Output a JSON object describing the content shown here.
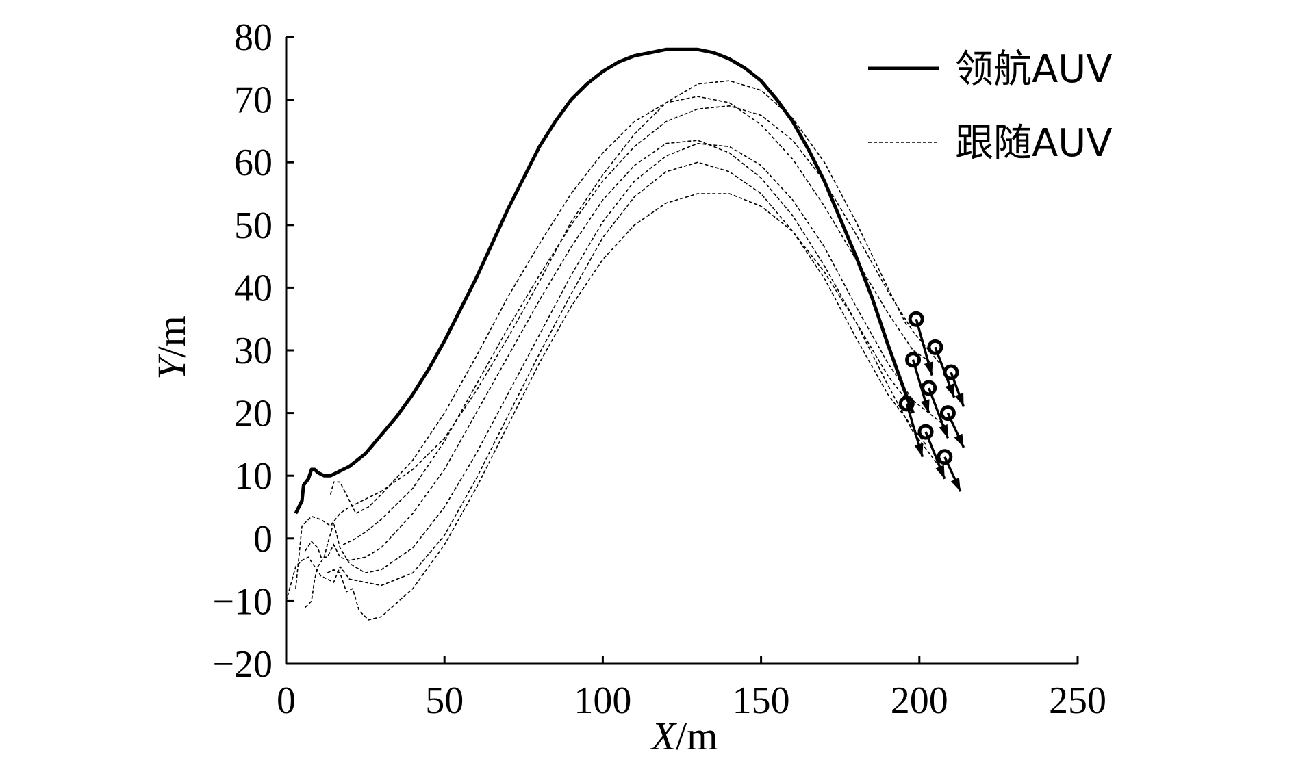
{
  "chart_data": {
    "type": "line",
    "title": "",
    "xlabel_italic": "X",
    "xlabel_unit": "/m",
    "ylabel_italic": "Y",
    "ylabel_unit": "/m",
    "xlim": [
      0,
      250
    ],
    "ylim": [
      -20,
      80
    ],
    "xticks": [
      0,
      50,
      100,
      150,
      200,
      250
    ],
    "yticks": [
      80,
      70,
      60,
      50,
      40,
      30,
      20,
      10,
      0,
      -10,
      -20
    ],
    "xtick_labels": [
      "0",
      "50",
      "100",
      "150",
      "200",
      "250"
    ],
    "ytick_labels": [
      "80",
      "70",
      "60",
      "50",
      "40",
      "30",
      "20",
      "10",
      "0",
      "−10",
      "−20"
    ],
    "grid": false,
    "legend_position": "top-right",
    "legend": [
      {
        "label": "领航AUV",
        "style": "solid"
      },
      {
        "label": "跟随AUV",
        "style": "dashed"
      }
    ],
    "series": [
      {
        "name": "领航AUV",
        "style": "solid",
        "x": [
          3,
          4,
          5,
          5.5,
          7,
          8,
          9,
          10,
          12,
          14,
          16,
          18,
          20,
          25,
          30,
          35,
          40,
          45,
          50,
          55,
          60,
          65,
          70,
          75,
          80,
          85,
          90,
          95,
          100,
          105,
          110,
          115,
          120,
          125,
          130,
          135,
          140,
          145,
          150,
          155,
          160,
          165,
          170,
          175,
          180,
          185,
          190,
          195,
          198
        ],
        "y": [
          4,
          5,
          6,
          8.5,
          9.5,
          11,
          11,
          10.5,
          10,
          10,
          10.5,
          11,
          11.5,
          13.5,
          16.5,
          19.5,
          23,
          27,
          31.5,
          36.5,
          41.5,
          47,
          52.5,
          57.5,
          62.5,
          66.5,
          70,
          72.5,
          74.5,
          76,
          77,
          77.5,
          78,
          78,
          78,
          77.5,
          76.5,
          75,
          73,
          70,
          66.5,
          62,
          57,
          51,
          45,
          38.5,
          31,
          24,
          20
        ]
      },
      {
        "name": "跟随AUV",
        "style": "dashed",
        "x": [
          14,
          15,
          17,
          19,
          22,
          26,
          30,
          40,
          50,
          60,
          70,
          80,
          90,
          100,
          110,
          120,
          130,
          140,
          150,
          160,
          170,
          180,
          190,
          198,
          204
        ],
        "y": [
          7,
          9,
          9,
          7,
          4,
          5,
          7,
          12.5,
          20,
          29,
          38.5,
          47,
          55,
          61.5,
          66.5,
          69.5,
          70.5,
          69.5,
          66,
          60.5,
          53,
          44.5,
          36,
          30,
          28
        ]
      },
      {
        "name": "跟随AUV",
        "style": "dashed",
        "x": [
          3,
          5,
          8,
          11,
          14,
          17,
          20,
          24,
          30,
          40,
          50,
          60,
          70,
          80,
          90,
          100,
          110,
          120,
          130,
          140,
          150,
          160,
          170,
          180,
          190,
          196
        ],
        "y": [
          -8,
          2,
          3.5,
          3,
          2,
          4,
          5,
          6,
          7.5,
          11,
          16,
          23.5,
          32,
          41,
          50.5,
          58,
          64.5,
          69.5,
          72.5,
          73,
          71.5,
          67,
          60,
          50.5,
          40,
          34
        ]
      },
      {
        "name": "跟随AUV",
        "style": "dashed",
        "x": [
          18,
          20,
          22,
          25,
          30,
          40,
          50,
          60,
          70,
          80,
          90,
          100,
          110,
          120,
          130,
          140,
          150,
          160,
          170,
          180,
          190,
          198,
          208
        ],
        "y": [
          -1,
          -0.5,
          0,
          1,
          3,
          8,
          15.5,
          24.5,
          33.5,
          42,
          50,
          57,
          62.5,
          66.5,
          68.5,
          69,
          67.5,
          63.5,
          57,
          48.5,
          39.5,
          33,
          27
        ]
      },
      {
        "name": "跟随AUV",
        "style": "dashed",
        "x": [
          6,
          8,
          10,
          11,
          13,
          15,
          17,
          20,
          25,
          30,
          40,
          50,
          60,
          70,
          80,
          90,
          100,
          110,
          120,
          130,
          140,
          150,
          160,
          170,
          180,
          190,
          196
        ],
        "y": [
          -2,
          -0.5,
          -1.5,
          -3,
          -3,
          -1,
          -3,
          -3.5,
          -3,
          -1.5,
          4,
          11,
          20,
          29,
          38,
          46.5,
          54,
          59.5,
          63,
          63.5,
          61.5,
          57.5,
          51.5,
          43.5,
          34.5,
          26,
          22
        ]
      },
      {
        "name": "跟随AUV",
        "style": "dashed",
        "x": [
          6,
          8,
          9,
          10,
          12,
          13,
          15,
          17,
          20,
          25,
          30,
          40,
          50,
          60,
          70,
          80,
          90,
          100,
          110,
          120,
          130,
          140,
          150,
          160,
          170,
          180,
          190,
          198,
          208
        ],
        "y": [
          -11,
          -10,
          -6.5,
          -4.5,
          -3,
          -1,
          2.5,
          -1.5,
          -4,
          -5.5,
          -5,
          -1.5,
          5,
          13.5,
          23,
          32.5,
          42,
          50.5,
          57,
          61,
          63,
          62.5,
          59.5,
          54,
          46.5,
          37,
          28,
          22,
          18
        ]
      },
      {
        "name": "跟随AUV",
        "style": "dashed",
        "x": [
          0,
          3,
          5,
          7,
          9,
          11,
          13,
          15,
          17,
          20,
          25,
          30,
          40,
          50,
          60,
          70,
          80,
          90,
          100,
          110,
          120,
          130,
          140,
          150,
          160,
          170,
          180,
          190,
          202
        ],
        "y": [
          -10,
          -4.5,
          -3.5,
          -3,
          -4.5,
          -6,
          -6.5,
          -7,
          -4.5,
          -6.5,
          -7,
          -7.5,
          -5.5,
          0.5,
          9.5,
          19.5,
          29.5,
          39,
          48,
          54.5,
          58.5,
          60,
          58.5,
          55,
          49,
          41.5,
          32,
          23,
          15
        ]
      },
      {
        "name": "跟随AUV",
        "style": "dashed",
        "x": [
          13,
          15,
          17,
          19,
          21,
          23,
          26,
          30,
          40,
          50,
          60,
          70,
          80,
          90,
          100,
          110,
          120,
          130,
          140,
          150,
          160,
          170,
          180,
          190,
          198,
          207
        ],
        "y": [
          -5.5,
          -5,
          -5.5,
          -8.5,
          -8,
          -11.5,
          -13,
          -12.5,
          -8,
          -1,
          8,
          18,
          28,
          37,
          44.5,
          50,
          53.5,
          55,
          55,
          53,
          49,
          42.5,
          34.5,
          24.5,
          17,
          11
        ]
      }
    ],
    "formation_markers": [
      {
        "x": 199,
        "y": 35,
        "heading_to": [
          204,
          26
        ]
      },
      {
        "x": 205,
        "y": 30.5,
        "heading_to": [
          211,
          22.5
        ]
      },
      {
        "x": 210,
        "y": 26.5,
        "heading_to": [
          214,
          21
        ]
      },
      {
        "x": 198,
        "y": 28.5,
        "heading_to": [
          203,
          20
        ]
      },
      {
        "x": 203,
        "y": 24,
        "heading_to": [
          209,
          16
        ]
      },
      {
        "x": 209,
        "y": 20,
        "heading_to": [
          214,
          14.5
        ]
      },
      {
        "x": 196,
        "y": 21.5,
        "heading_to": [
          201,
          13
        ]
      },
      {
        "x": 202,
        "y": 17,
        "heading_to": [
          208,
          9.5
        ]
      },
      {
        "x": 208,
        "y": 13,
        "heading_to": [
          213,
          7.5
        ]
      }
    ]
  }
}
